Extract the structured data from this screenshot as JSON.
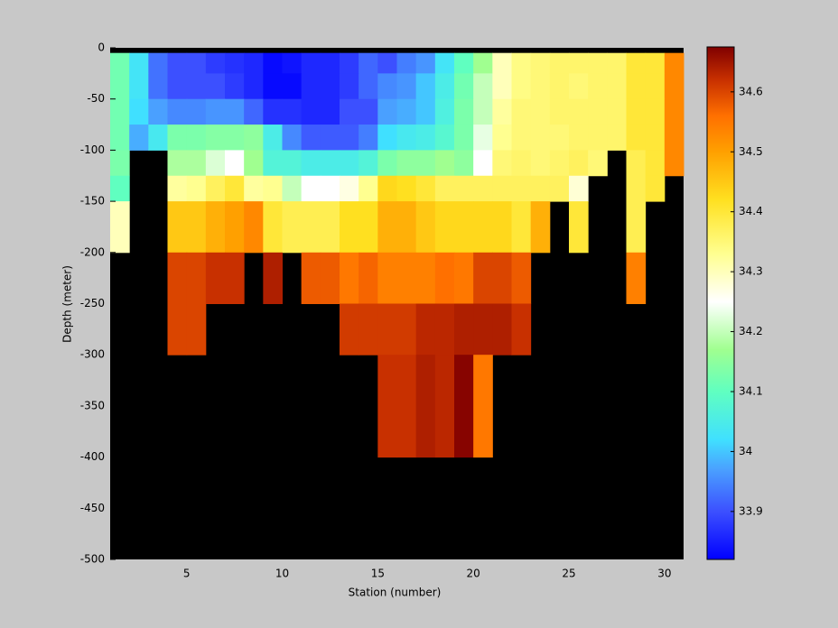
{
  "chart_data": {
    "type": "heatmap",
    "x_label": "Station (number)",
    "y_label": "Depth (meter)",
    "xbins": [
      1,
      2,
      3,
      4,
      5,
      6,
      7,
      8,
      9,
      10,
      11,
      12,
      13,
      14,
      15,
      16,
      17,
      18,
      19,
      20,
      21,
      22,
      23,
      24,
      25,
      26,
      27,
      28,
      29,
      30,
      31
    ],
    "ybins": [
      0,
      -5,
      -25,
      -50,
      -75,
      -100,
      -125,
      -150,
      -200,
      -250,
      -300,
      -400,
      -500
    ],
    "xlim": [
      1,
      31
    ],
    "ylim": [
      -500,
      0
    ],
    "xticks": [
      5,
      10,
      15,
      20,
      25,
      30
    ],
    "yticks": [
      0,
      -50,
      -100,
      -150,
      -200,
      -250,
      -300,
      -350,
      -400,
      -450,
      -500
    ],
    "clim": [
      33.82,
      34.675
    ],
    "cticks": [
      33.9,
      34,
      34.1,
      34.2,
      34.3,
      34.4,
      34.5,
      34.6
    ],
    "missing_color": "#000000",
    "colorscale": [
      [
        33.82,
        "#0000ff"
      ],
      [
        33.9,
        "#3c50ff"
      ],
      [
        33.97,
        "#4aa0ff"
      ],
      [
        34.02,
        "#40e0ff"
      ],
      [
        34.1,
        "#60ffc0"
      ],
      [
        34.17,
        "#a0ff90"
      ],
      [
        34.25,
        "#ffffff"
      ],
      [
        34.33,
        "#ffff90"
      ],
      [
        34.42,
        "#ffe020"
      ],
      [
        34.5,
        "#ffa000"
      ],
      [
        34.56,
        "#ff7000"
      ],
      [
        34.62,
        "#c83000"
      ],
      [
        34.675,
        "#800000"
      ]
    ],
    "values": [
      [
        null,
        null,
        null,
        null,
        null,
        null,
        null,
        null,
        null,
        null,
        null,
        null,
        null,
        null,
        null,
        null,
        null,
        null,
        null,
        null,
        null,
        null,
        null,
        null,
        null,
        null,
        null,
        null,
        null,
        null
      ],
      [
        34.12,
        34.03,
        33.93,
        33.9,
        33.9,
        33.88,
        33.87,
        33.86,
        33.83,
        33.84,
        33.86,
        33.86,
        33.88,
        33.92,
        33.9,
        33.94,
        33.96,
        34.03,
        34.1,
        34.17,
        34.3,
        34.34,
        34.35,
        34.36,
        34.36,
        34.36,
        34.36,
        34.4,
        34.4,
        34.53
      ],
      [
        34.12,
        34.03,
        33.93,
        33.9,
        33.9,
        33.9,
        33.88,
        33.86,
        33.83,
        33.83,
        33.86,
        33.86,
        33.88,
        33.92,
        33.95,
        33.96,
        34.0,
        34.05,
        34.12,
        34.2,
        34.3,
        34.34,
        34.35,
        34.36,
        34.35,
        34.36,
        34.36,
        34.4,
        34.4,
        34.53
      ],
      [
        34.12,
        34.02,
        33.97,
        33.95,
        33.95,
        33.96,
        33.96,
        33.92,
        33.87,
        33.87,
        33.86,
        33.86,
        33.9,
        33.9,
        33.97,
        33.98,
        34.0,
        34.06,
        34.13,
        34.2,
        34.32,
        34.35,
        34.35,
        34.36,
        34.36,
        34.36,
        34.36,
        34.4,
        34.4,
        34.53
      ],
      [
        34.12,
        33.98,
        34.04,
        34.13,
        34.13,
        34.14,
        34.14,
        34.15,
        34.05,
        33.95,
        33.91,
        33.91,
        33.91,
        33.94,
        34.02,
        34.04,
        34.05,
        34.08,
        34.13,
        34.23,
        34.33,
        34.35,
        34.35,
        34.35,
        34.36,
        34.36,
        34.36,
        34.4,
        34.4,
        34.53
      ],
      [
        34.13,
        null,
        null,
        34.18,
        34.18,
        34.22,
        34.25,
        34.17,
        34.07,
        34.07,
        34.05,
        34.05,
        34.05,
        34.07,
        34.13,
        34.15,
        34.15,
        34.17,
        34.15,
        34.25,
        34.35,
        34.36,
        34.35,
        34.36,
        34.37,
        34.35,
        null,
        34.38,
        34.4,
        34.53
      ],
      [
        34.1,
        null,
        null,
        34.32,
        34.33,
        34.37,
        34.4,
        34.32,
        34.33,
        34.2,
        34.25,
        34.25,
        34.27,
        34.33,
        34.43,
        34.42,
        34.4,
        34.37,
        34.37,
        34.37,
        34.37,
        34.37,
        34.37,
        34.37,
        34.28,
        null,
        null,
        34.38,
        34.4,
        null
      ],
      [
        34.3,
        null,
        null,
        34.45,
        34.45,
        34.48,
        34.5,
        34.53,
        34.4,
        34.38,
        34.38,
        34.38,
        34.42,
        34.42,
        34.48,
        34.48,
        34.45,
        34.43,
        34.43,
        34.43,
        34.43,
        34.4,
        34.48,
        null,
        34.4,
        null,
        null,
        34.38,
        null,
        null
      ],
      [
        null,
        null,
        null,
        34.6,
        34.6,
        34.62,
        34.62,
        null,
        34.64,
        null,
        34.58,
        34.58,
        34.55,
        34.57,
        34.54,
        34.54,
        34.54,
        34.56,
        34.55,
        34.6,
        34.6,
        34.58,
        null,
        null,
        null,
        null,
        null,
        34.54,
        null,
        null
      ],
      [
        null,
        null,
        null,
        34.6,
        34.6,
        null,
        null,
        null,
        null,
        null,
        null,
        null,
        34.61,
        34.61,
        34.61,
        34.61,
        34.63,
        34.63,
        34.64,
        34.64,
        34.64,
        34.62,
        null,
        null,
        null,
        null,
        null,
        null,
        null,
        null
      ],
      [
        null,
        null,
        null,
        null,
        null,
        null,
        null,
        null,
        null,
        null,
        null,
        null,
        null,
        null,
        34.62,
        34.62,
        34.64,
        34.63,
        34.67,
        34.55,
        null,
        null,
        null,
        null,
        null,
        null,
        null,
        null,
        null,
        null
      ],
      [
        null,
        null,
        null,
        null,
        null,
        null,
        null,
        null,
        null,
        null,
        null,
        null,
        null,
        null,
        null,
        null,
        null,
        null,
        null,
        null,
        null,
        null,
        null,
        null,
        null,
        null,
        null,
        null,
        null,
        null
      ]
    ]
  }
}
